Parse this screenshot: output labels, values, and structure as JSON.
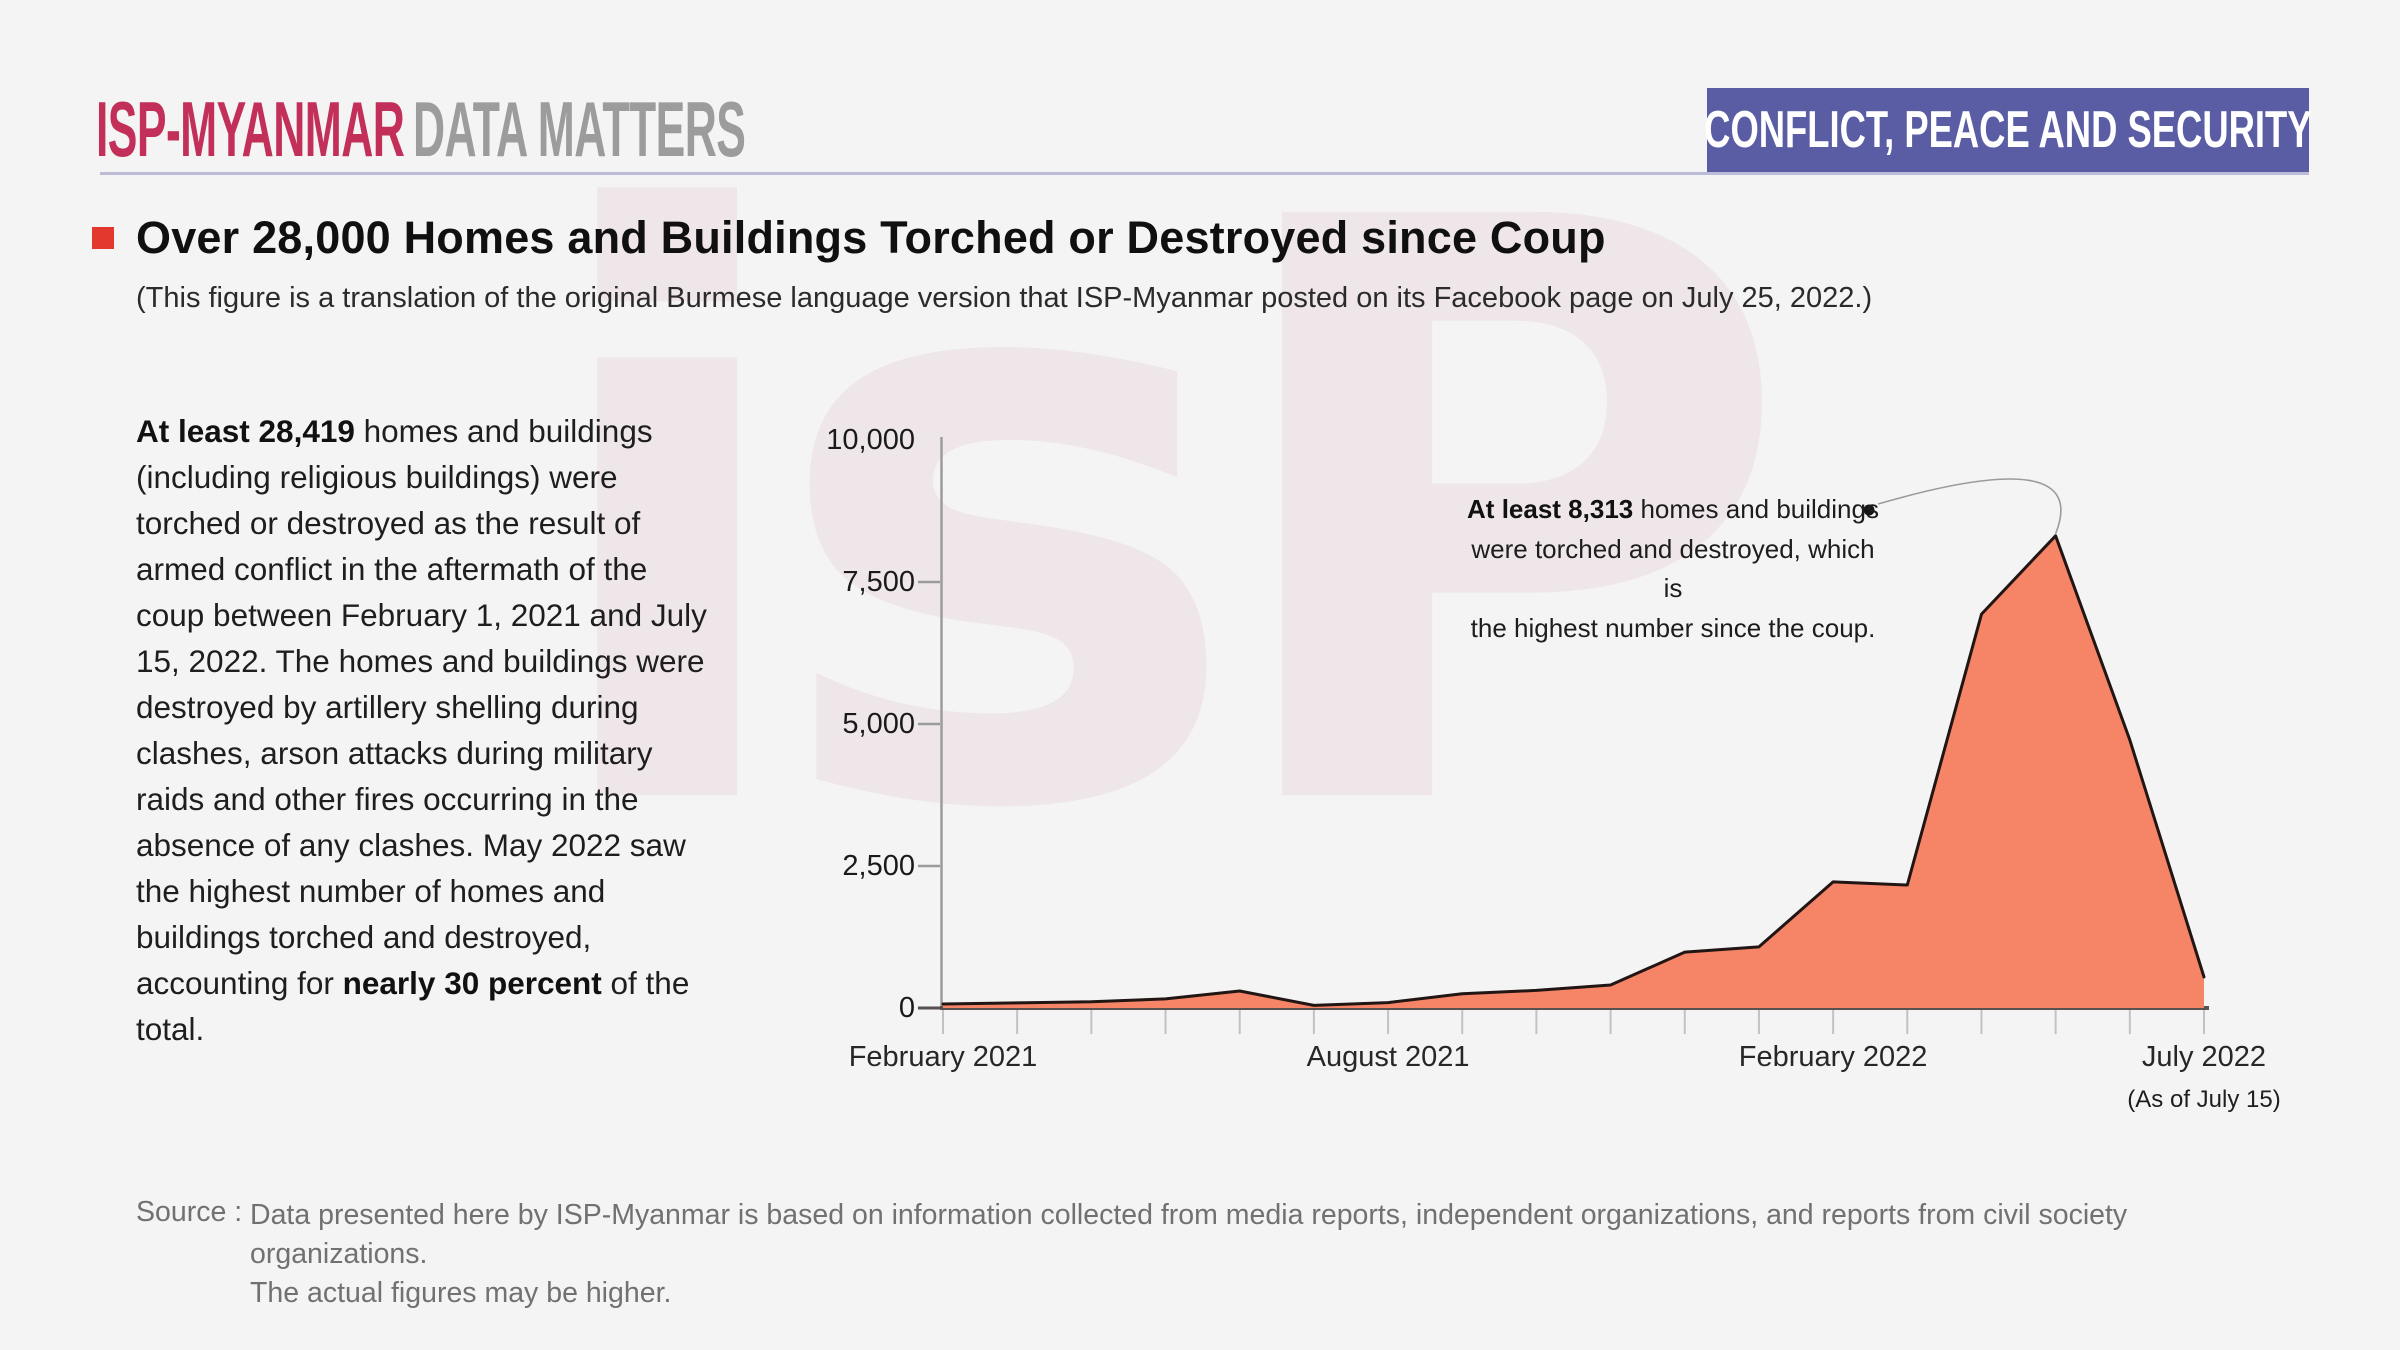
{
  "header": {
    "logo_primary": "ISP-MYANMAR",
    "logo_secondary": "DATA MATTERS",
    "category_badge": "CONFLICT, PEACE AND SECURITY"
  },
  "headline": {
    "title": "Over 28,000 Homes and Buildings Torched or Destroyed since Coup",
    "subtitle": "(This figure is a translation of the original Burmese language version that ISP-Myanmar posted on its Facebook page on July 25, 2022.)"
  },
  "summary": {
    "bold_lead": "At least 28,419",
    "text_after_lead": " homes and buildings (including religious buildings) were torched or destroyed as the result of armed conflict in the aftermath of the coup between February 1, 2021 and July 15, 2022. The homes and buildings were destroyed by artillery shelling during clashes, arson attacks during military raids and other fires occurring in the absence of any clashes. May 2022 saw the highest number of homes and buildings torched and destroyed, accounting for ",
    "bold_mid": "nearly 30 percent",
    "text_end": " of the total."
  },
  "annotation": {
    "bold": "At least 8,313",
    "line1_rest": " homes and buildings",
    "line2": "were torched and destroyed, which is",
    "line3": "the highest number since the coup."
  },
  "chart_data": {
    "type": "area",
    "title": "Homes and buildings torched or destroyed per month since the coup",
    "months": [
      "February 2021",
      "March 2021",
      "April 2021",
      "May 2021",
      "June 2021",
      "July 2021",
      "August 2021",
      "September 2021",
      "October 2021",
      "November 2021",
      "December 2021",
      "January 2022",
      "February 2022",
      "March 2022",
      "April 2022",
      "May 2022",
      "June 2022",
      "July 2022"
    ],
    "values": [
      70,
      90,
      110,
      160,
      300,
      45,
      95,
      250,
      310,
      405,
      985,
      1075,
      2220,
      2165,
      6935,
      8313,
      4720,
      545
    ],
    "peak_value": 8313,
    "peak_month": "May 2022",
    "ylim": [
      0,
      10000
    ],
    "yticks": [
      0,
      2500,
      5000,
      7500,
      10000
    ],
    "ytick_labels": [
      "0",
      "2,500",
      "5,000",
      "7,500",
      "10,000"
    ],
    "xtick_labels": [
      "February 2021",
      "August 2021",
      "February 2022",
      "July 2022"
    ],
    "xtick_month_indices": [
      0,
      6,
      12,
      17
    ],
    "x_note": "(As of July 15)",
    "grid": "off",
    "colors": {
      "fill": "#f68568",
      "stroke": "#221614",
      "axis": "#9b9b9b",
      "baseline": "#575150",
      "month_tick": "#c2c2c2",
      "connector": "#9b9b9b",
      "dot": "#141414"
    }
  },
  "source": {
    "label": "Source :",
    "line1": "Data presented here by ISP-Myanmar is based on information collected from media reports, independent organizations, and reports from civil society organizations.",
    "line2": "The actual figures may be higher."
  },
  "watermark": {
    "text": "isP"
  }
}
